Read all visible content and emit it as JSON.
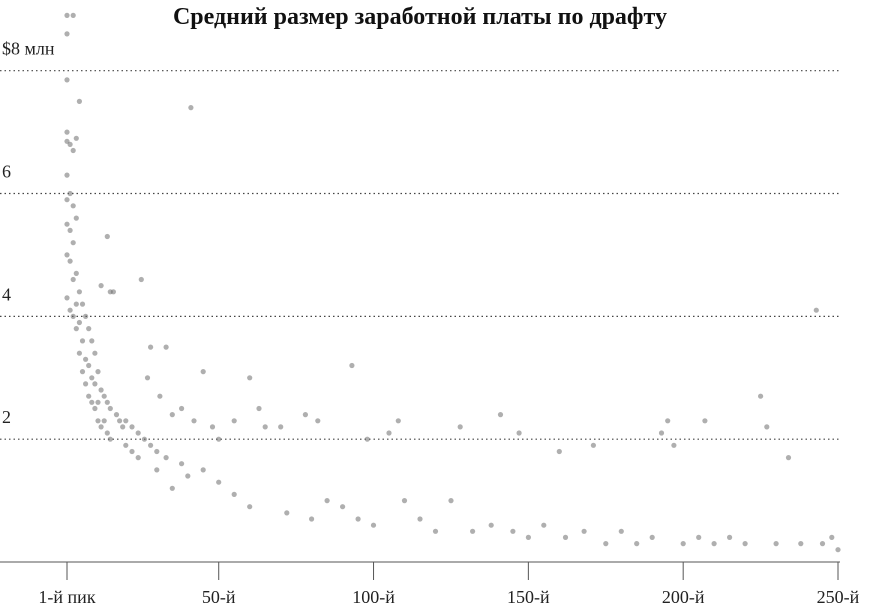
{
  "chart_data": {
    "type": "scatter",
    "title": "Средний размер заработной платы по драфту",
    "xlabel": "",
    "ylabel": "",
    "xlim": [
      1,
      250
    ],
    "ylim": [
      0,
      8.5
    ],
    "x_ticks": [
      {
        "value": 1,
        "label": "1-й пик"
      },
      {
        "value": 50,
        "label": "50-й"
      },
      {
        "value": 100,
        "label": "100-й"
      },
      {
        "value": 150,
        "label": "150-й"
      },
      {
        "value": 200,
        "label": "200-й"
      },
      {
        "value": 250,
        "label": "250-й"
      }
    ],
    "y_ticks": [
      {
        "value": 2,
        "label": "2"
      },
      {
        "value": 4,
        "label": "4"
      },
      {
        "value": 6,
        "label": "6"
      },
      {
        "value": 8,
        "label": "$8 млн"
      }
    ],
    "grid": "horizontal dotted",
    "legend": "none",
    "point_color": "#6e6e6e",
    "series": [
      {
        "values": [
          [
            1,
            8.9
          ],
          [
            1,
            8.6
          ],
          [
            1,
            7.85
          ],
          [
            1,
            7.0
          ],
          [
            1,
            6.85
          ],
          [
            1,
            6.3
          ],
          [
            1,
            5.9
          ],
          [
            1,
            5.5
          ],
          [
            1,
            5.0
          ],
          [
            1,
            4.3
          ],
          [
            2,
            6.8
          ],
          [
            2,
            6.0
          ],
          [
            2,
            5.4
          ],
          [
            2,
            4.9
          ],
          [
            2,
            4.1
          ],
          [
            3,
            8.9
          ],
          [
            3,
            6.7
          ],
          [
            3,
            5.8
          ],
          [
            3,
            5.2
          ],
          [
            3,
            4.6
          ],
          [
            3,
            4.0
          ],
          [
            4,
            6.9
          ],
          [
            4,
            5.6
          ],
          [
            4,
            4.7
          ],
          [
            4,
            4.2
          ],
          [
            4,
            3.8
          ],
          [
            5,
            7.5
          ],
          [
            5,
            4.4
          ],
          [
            5,
            3.9
          ],
          [
            5,
            3.4
          ],
          [
            6,
            4.2
          ],
          [
            6,
            3.6
          ],
          [
            6,
            3.1
          ],
          [
            7,
            4.0
          ],
          [
            7,
            3.3
          ],
          [
            7,
            2.9
          ],
          [
            8,
            3.8
          ],
          [
            8,
            3.2
          ],
          [
            8,
            2.7
          ],
          [
            9,
            3.6
          ],
          [
            9,
            3.0
          ],
          [
            9,
            2.6
          ],
          [
            10,
            3.4
          ],
          [
            10,
            2.9
          ],
          [
            10,
            2.5
          ],
          [
            11,
            3.1
          ],
          [
            11,
            2.6
          ],
          [
            11,
            2.3
          ],
          [
            12,
            4.5
          ],
          [
            12,
            2.8
          ],
          [
            12,
            2.2
          ],
          [
            13,
            2.7
          ],
          [
            13,
            2.3
          ],
          [
            14,
            5.3
          ],
          [
            14,
            2.6
          ],
          [
            14,
            2.1
          ],
          [
            15,
            4.4
          ],
          [
            15,
            2.5
          ],
          [
            15,
            2.0
          ],
          [
            16,
            4.4
          ],
          [
            17,
            2.4
          ],
          [
            18,
            2.3
          ],
          [
            19,
            2.2
          ],
          [
            20,
            2.3
          ],
          [
            20,
            1.9
          ],
          [
            22,
            2.2
          ],
          [
            22,
            1.8
          ],
          [
            24,
            2.1
          ],
          [
            24,
            1.7
          ],
          [
            25,
            4.6
          ],
          [
            26,
            2.0
          ],
          [
            27,
            3.0
          ],
          [
            28,
            3.5
          ],
          [
            28,
            1.9
          ],
          [
            30,
            1.8
          ],
          [
            30,
            1.5
          ],
          [
            31,
            2.7
          ],
          [
            33,
            3.5
          ],
          [
            33,
            1.7
          ],
          [
            35,
            2.4
          ],
          [
            35,
            1.2
          ],
          [
            38,
            2.5
          ],
          [
            38,
            1.6
          ],
          [
            40,
            1.4
          ],
          [
            41,
            7.4
          ],
          [
            42,
            2.3
          ],
          [
            45,
            3.1
          ],
          [
            45,
            1.5
          ],
          [
            48,
            2.2
          ],
          [
            50,
            2.0
          ],
          [
            50,
            1.3
          ],
          [
            55,
            2.3
          ],
          [
            55,
            1.1
          ],
          [
            60,
            3.0
          ],
          [
            60,
            0.9
          ],
          [
            63,
            2.5
          ],
          [
            65,
            2.2
          ],
          [
            70,
            2.2
          ],
          [
            72,
            0.8
          ],
          [
            78,
            2.4
          ],
          [
            80,
            0.7
          ],
          [
            82,
            2.3
          ],
          [
            85,
            1.0
          ],
          [
            90,
            0.9
          ],
          [
            93,
            3.2
          ],
          [
            95,
            0.7
          ],
          [
            98,
            2.0
          ],
          [
            100,
            0.6
          ],
          [
            105,
            2.1
          ],
          [
            108,
            2.3
          ],
          [
            110,
            1.0
          ],
          [
            115,
            0.7
          ],
          [
            120,
            0.5
          ],
          [
            125,
            1.0
          ],
          [
            128,
            2.2
          ],
          [
            132,
            0.5
          ],
          [
            138,
            0.6
          ],
          [
            141,
            2.4
          ],
          [
            145,
            0.5
          ],
          [
            147,
            2.1
          ],
          [
            150,
            0.4
          ],
          [
            155,
            0.6
          ],
          [
            160,
            1.8
          ],
          [
            162,
            0.4
          ],
          [
            168,
            0.5
          ],
          [
            171,
            1.9
          ],
          [
            175,
            0.3
          ],
          [
            180,
            0.5
          ],
          [
            185,
            0.3
          ],
          [
            190,
            0.4
          ],
          [
            193,
            2.1
          ],
          [
            195,
            2.3
          ],
          [
            197,
            1.9
          ],
          [
            200,
            0.3
          ],
          [
            205,
            0.4
          ],
          [
            207,
            2.3
          ],
          [
            210,
            0.3
          ],
          [
            215,
            0.4
          ],
          [
            220,
            0.3
          ],
          [
            225,
            2.7
          ],
          [
            227,
            2.2
          ],
          [
            230,
            0.3
          ],
          [
            234,
            1.7
          ],
          [
            238,
            0.3
          ],
          [
            243,
            4.1
          ],
          [
            245,
            0.3
          ],
          [
            248,
            0.4
          ],
          [
            250,
            0.2
          ]
        ]
      }
    ]
  }
}
